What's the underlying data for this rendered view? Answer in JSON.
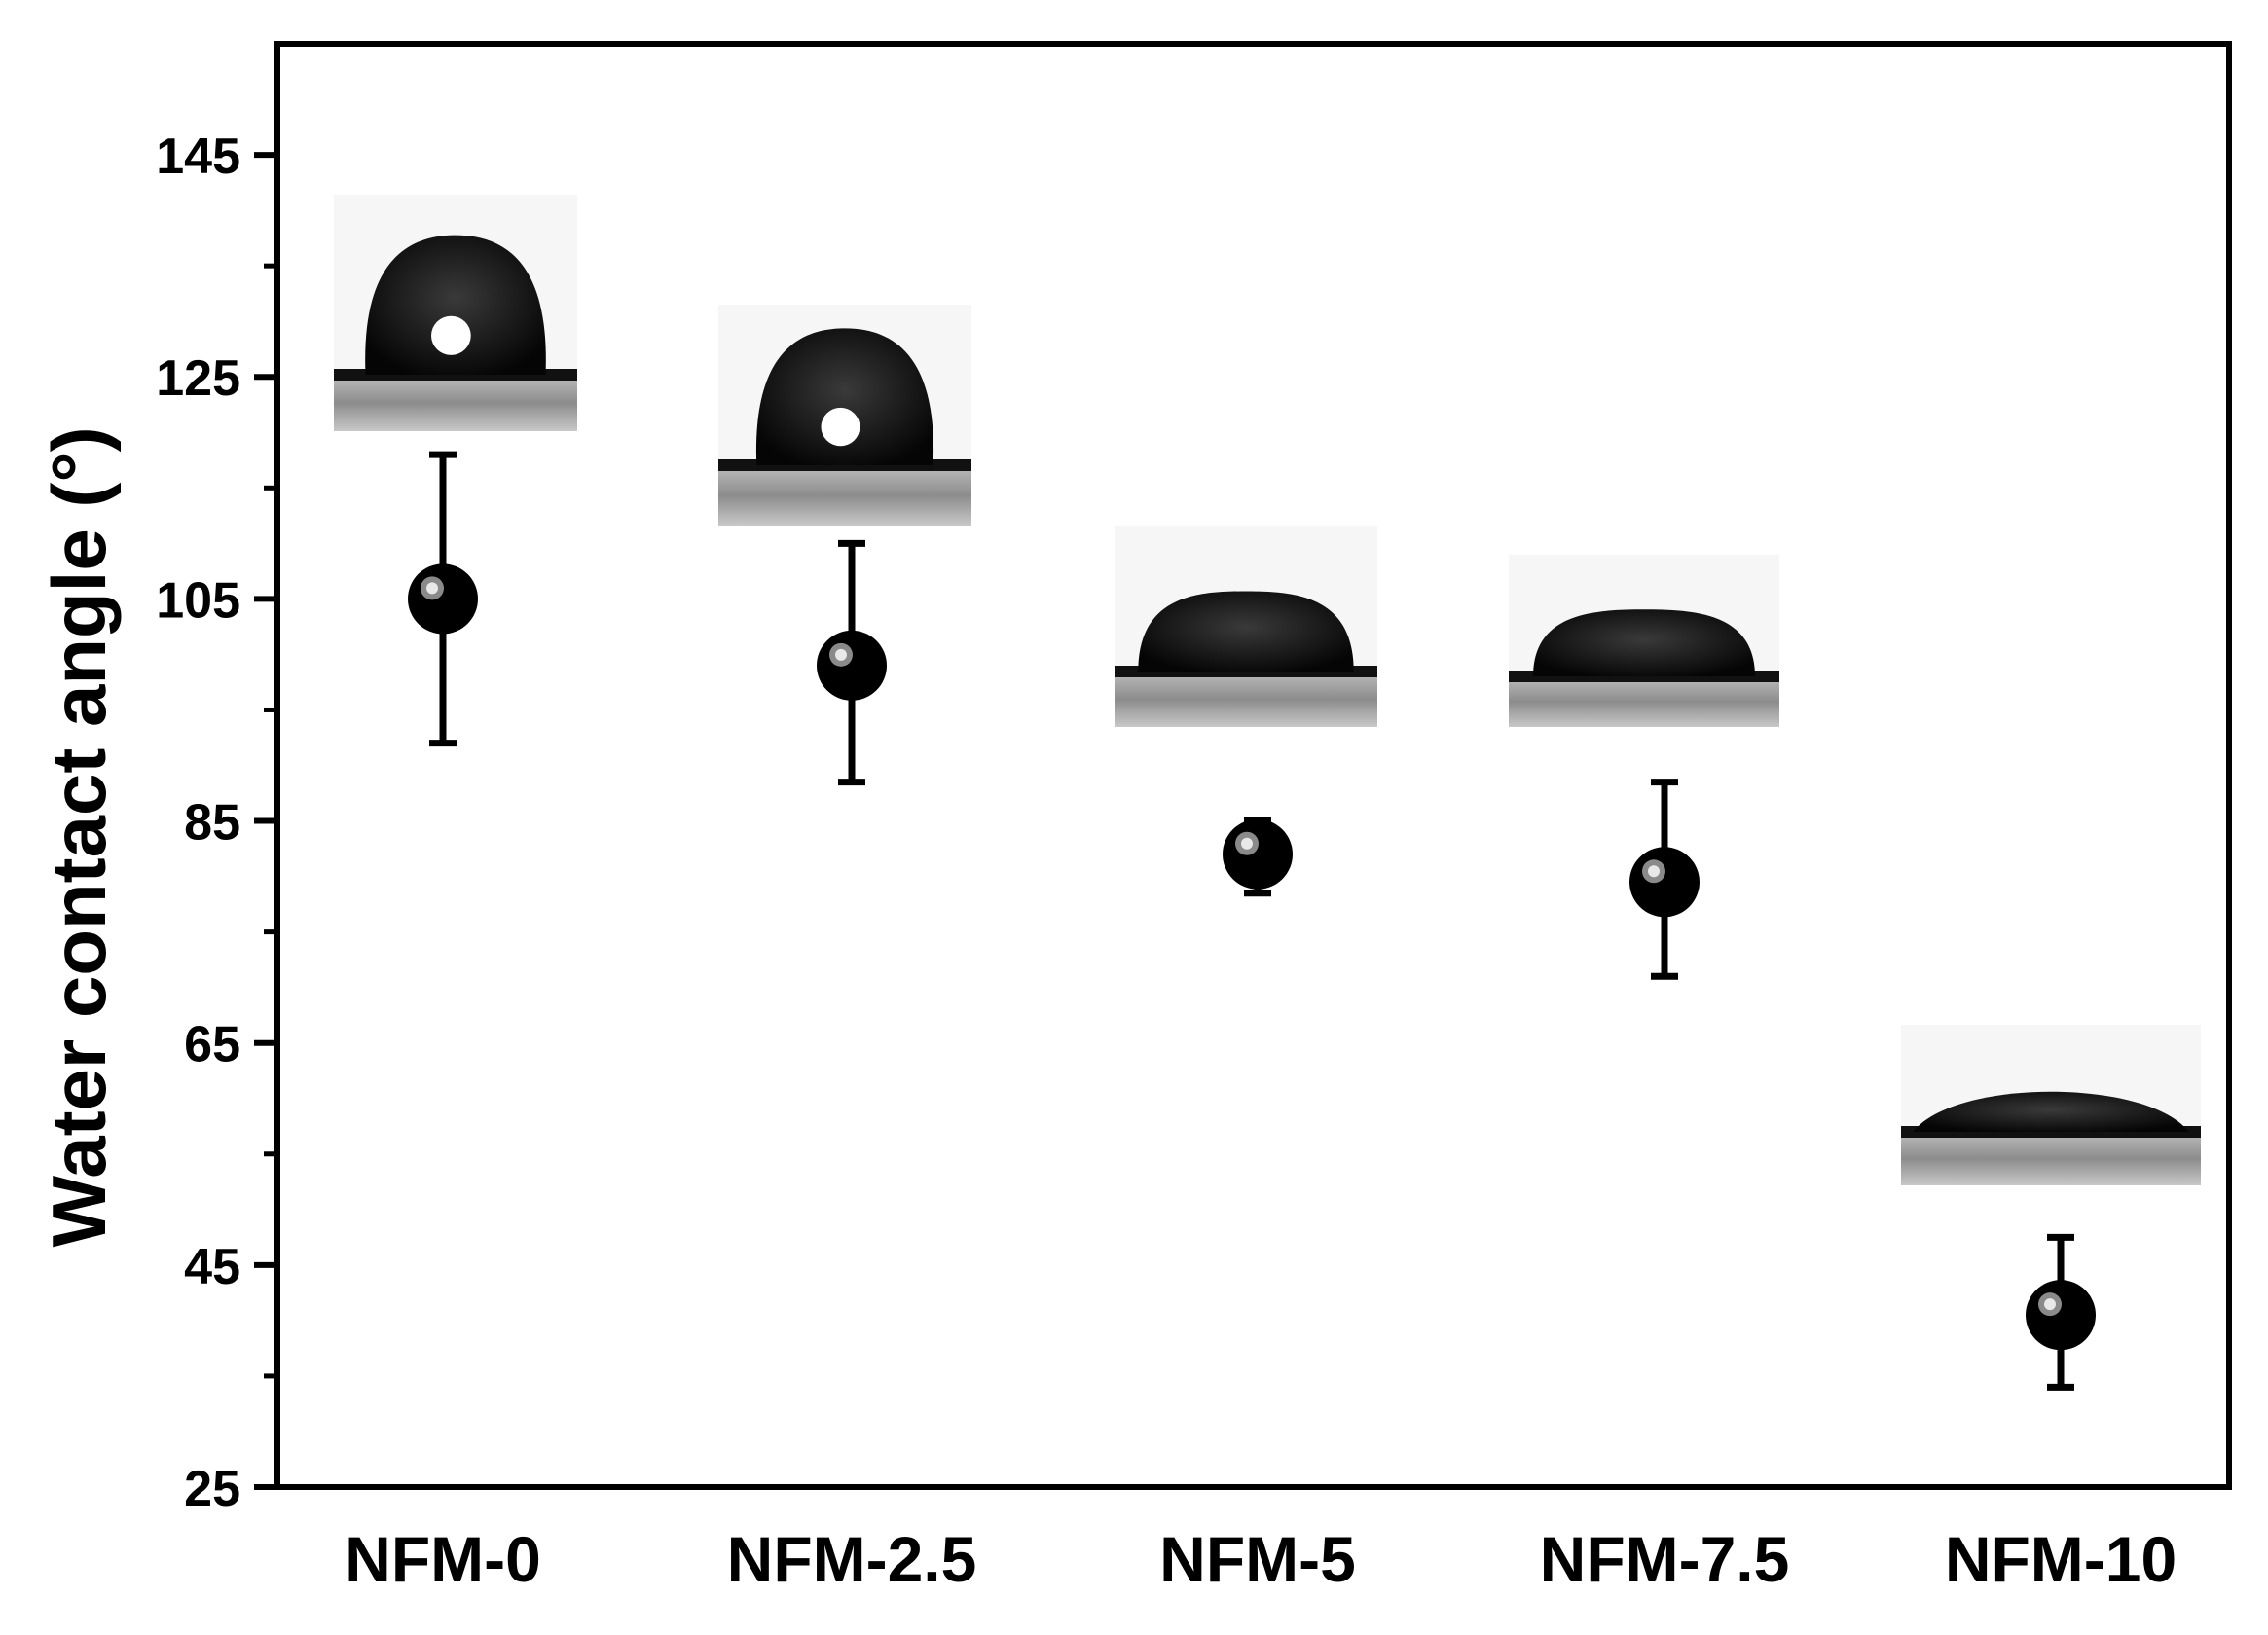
{
  "chart_data": {
    "type": "scatter",
    "title": "",
    "xlabel": "",
    "ylabel": "Water contact angle (°)",
    "categories": [
      "NFM-0",
      "NFM-2.5",
      "NFM-5",
      "NFM-7.5",
      "NFM-10"
    ],
    "ylim": [
      25,
      155
    ],
    "yticks": [
      25,
      45,
      65,
      85,
      105,
      125,
      145
    ],
    "grid": false,
    "legend": "none",
    "series": [
      {
        "values": [
          105,
          99,
          82,
          79.5,
          40.5
        ],
        "error_low": [
          92,
          88.5,
          78.5,
          71,
          34
        ],
        "error_high": [
          118,
          110,
          85,
          88.5,
          47.5
        ]
      }
    ],
    "insets": [
      {
        "category": "NFM-0",
        "icon": "water-droplet-photo",
        "drop_shape": "high-contact-angle"
      },
      {
        "category": "NFM-2.5",
        "icon": "water-droplet-photo",
        "drop_shape": "high-contact-angle"
      },
      {
        "category": "NFM-5",
        "icon": "water-droplet-photo",
        "drop_shape": "medium-contact-angle"
      },
      {
        "category": "NFM-7.5",
        "icon": "water-droplet-photo",
        "drop_shape": "medium-contact-angle"
      },
      {
        "category": "NFM-10",
        "icon": "water-droplet-photo",
        "drop_shape": "low-contact-angle"
      }
    ],
    "colors": {
      "marker": "#000000",
      "axis": "#000000",
      "substrate": "#9a9a9a"
    }
  }
}
